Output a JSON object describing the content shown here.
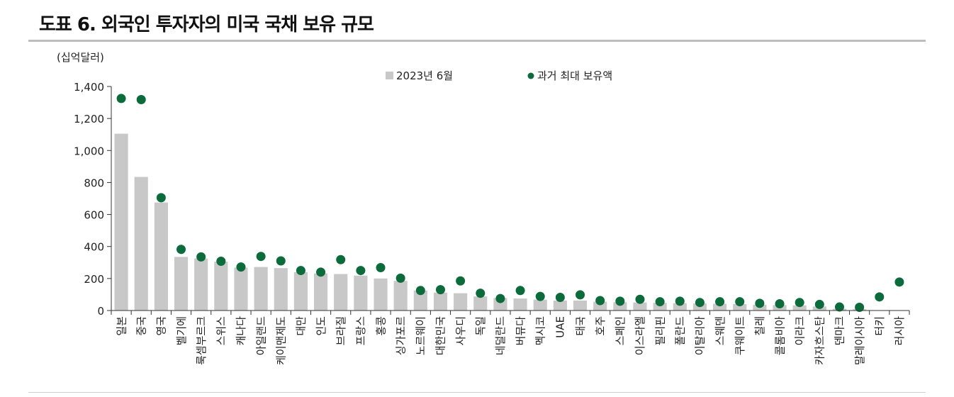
{
  "figure": {
    "title": "도표 6. 외국인 투자자의 미국 국채 보유 규모"
  },
  "colors": {
    "bar": "#c8c8c8",
    "dot": "#0b6b3a",
    "axis": "#333333"
  },
  "chart_data": {
    "type": "bar",
    "unit_label": "(십억달러)",
    "ylim": [
      0,
      1400
    ],
    "yticks": [
      "0",
      "200",
      "400",
      "600",
      "800",
      "1,000",
      "1,200",
      "1,400"
    ],
    "ytick_values": [
      0,
      200,
      400,
      600,
      800,
      1000,
      1200,
      1400
    ],
    "legend_placement": "top-center",
    "grid": false,
    "categories": [
      "일본",
      "중국",
      "영국",
      "벨기에",
      "룩셈부르크",
      "스위스",
      "캐나다",
      "아일랜드",
      "케이맨제도",
      "대만",
      "인도",
      "브라질",
      "프랑스",
      "홍콩",
      "싱가포르",
      "노르웨이",
      "대한민국",
      "사우디",
      "독일",
      "네덜란드",
      "버뮤다",
      "멕시코",
      "UAE",
      "태국",
      "호주",
      "스페인",
      "이스라엘",
      "필리핀",
      "폴란드",
      "이탈리아",
      "스웨덴",
      "쿠웨이트",
      "칠레",
      "콜롬비아",
      "이라크",
      "카자흐스탄",
      "덴마크",
      "말레이시아",
      "터키",
      "러시아"
    ],
    "series": [
      {
        "name": "2023년 6월",
        "type": "bar",
        "values": [
          1105,
          835,
          675,
          335,
          325,
          305,
          268,
          272,
          265,
          240,
          232,
          228,
          218,
          200,
          185,
          125,
          112,
          108,
          88,
          78,
          75,
          68,
          62,
          62,
          55,
          52,
          50,
          48,
          46,
          44,
          42,
          40,
          36,
          34,
          32,
          25,
          10,
          8,
          2,
          0
        ]
      },
      {
        "name": "과거 최대 보유액",
        "type": "scatter",
        "values": [
          1325,
          1318,
          705,
          382,
          335,
          308,
          272,
          338,
          310,
          250,
          240,
          318,
          250,
          268,
          202,
          125,
          130,
          185,
          108,
          75,
          125,
          88,
          82,
          98,
          62,
          58,
          70,
          55,
          58,
          50,
          55,
          55,
          45,
          42,
          50,
          38,
          22,
          20,
          85,
          178
        ]
      }
    ]
  }
}
